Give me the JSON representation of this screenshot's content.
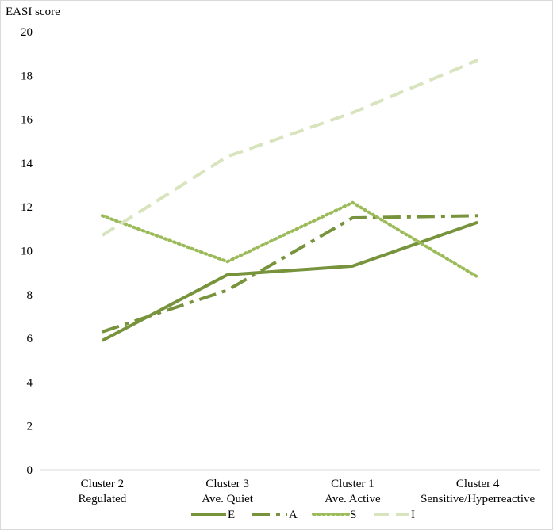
{
  "chart_data": {
    "type": "line",
    "title": "",
    "xlabel": "",
    "ylabel": "EASI score",
    "ylim": [
      0,
      20
    ],
    "yticks": [
      "0",
      "2",
      "4",
      "6",
      "8",
      "10",
      "12",
      "14",
      "16",
      "18",
      "20"
    ],
    "categories": [
      [
        "Cluster 2",
        "Regulated"
      ],
      [
        "Cluster 3",
        "Ave. Quiet"
      ],
      [
        "Cluster 1",
        "Ave. Active"
      ],
      [
        "Cluster 4",
        "Sensitive/Hyperreactive"
      ]
    ],
    "grid": false,
    "legend_position": "bottom",
    "series": [
      {
        "name": "E",
        "values": [
          5.9,
          8.9,
          9.3,
          11.3
        ],
        "color": "#77933c",
        "style": "solid"
      },
      {
        "name": "A",
        "values": [
          6.3,
          8.2,
          11.5,
          11.6
        ],
        "color": "#77933c",
        "style": "dashdot"
      },
      {
        "name": "S",
        "values": [
          11.6,
          9.5,
          12.2,
          8.8
        ],
        "color": "#9bbb59",
        "style": "dotted"
      },
      {
        "name": "I",
        "values": [
          10.7,
          14.3,
          16.3,
          18.7
        ],
        "color": "#d7e4bd",
        "style": "dashed"
      }
    ]
  }
}
